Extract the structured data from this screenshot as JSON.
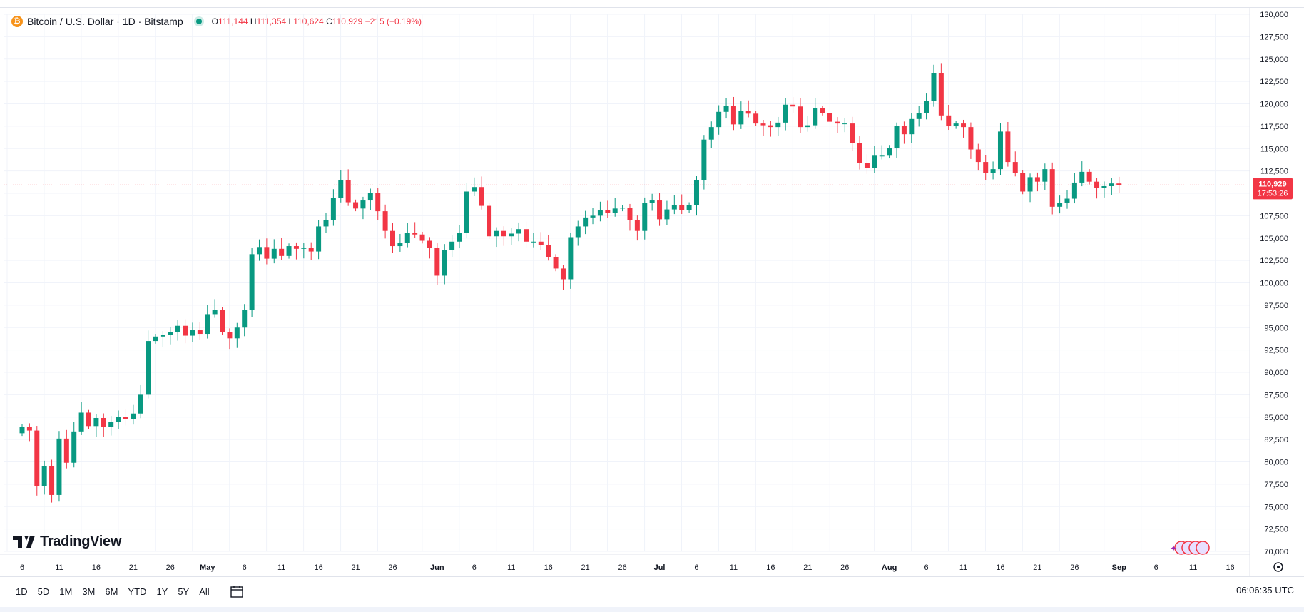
{
  "header": {
    "coin_symbol": "₿",
    "symbol_title": "Bitcoin / U.S. Dollar · 1D · Bitstamp",
    "ohlc": {
      "o_key": "O",
      "o": "111,144",
      "h_key": "H",
      "h": "111,354",
      "l_key": "L",
      "l": "110,624",
      "c_key": "C",
      "c": "110,929",
      "change": "−215 (−0.19%)"
    }
  },
  "branding": {
    "logo_mark": "TV",
    "logo_text": "TradingView"
  },
  "price_label": {
    "price": "110,929",
    "countdown": "17:53:26"
  },
  "bottom": {
    "ranges": [
      "1D",
      "5D",
      "1M",
      "3M",
      "6M",
      "YTD",
      "1Y",
      "5Y",
      "All"
    ],
    "clock": "06:06:35 UTC"
  },
  "colors": {
    "up": "#089981",
    "down": "#f23645",
    "grid": "#f0f3fa",
    "text": "#131722",
    "accent_btc": "#f7931a"
  },
  "chart_data": {
    "type": "candlestick",
    "title": "Bitcoin / U.S. Dollar · 1D · Bitstamp",
    "ylim": [
      70000,
      130000
    ],
    "y_ticks": [
      "70,000",
      "72,500",
      "75,000",
      "77,500",
      "80,000",
      "82,500",
      "85,000",
      "87,500",
      "90,000",
      "92,500",
      "95,000",
      "97,500",
      "100,000",
      "102,500",
      "105,000",
      "107,500",
      "110,000",
      "112,500",
      "115,000",
      "117,500",
      "120,000",
      "122,500",
      "125,000",
      "127,500",
      "130,000"
    ],
    "x_ticks": [
      {
        "label": "6",
        "day": 0
      },
      {
        "label": "11",
        "day": 5
      },
      {
        "label": "16",
        "day": 10
      },
      {
        "label": "21",
        "day": 15
      },
      {
        "label": "26",
        "day": 20
      },
      {
        "label": "May",
        "day": 25
      },
      {
        "label": "6",
        "day": 30
      },
      {
        "label": "11",
        "day": 35
      },
      {
        "label": "16",
        "day": 40
      },
      {
        "label": "21",
        "day": 45
      },
      {
        "label": "26",
        "day": 50
      },
      {
        "label": "Jun",
        "day": 56
      },
      {
        "label": "6",
        "day": 61
      },
      {
        "label": "11",
        "day": 66
      },
      {
        "label": "16",
        "day": 71
      },
      {
        "label": "21",
        "day": 76
      },
      {
        "label": "26",
        "day": 81
      },
      {
        "label": "Jul",
        "day": 86
      },
      {
        "label": "6",
        "day": 91
      },
      {
        "label": "11",
        "day": 96
      },
      {
        "label": "16",
        "day": 101
      },
      {
        "label": "21",
        "day": 106
      },
      {
        "label": "26",
        "day": 111
      },
      {
        "label": "Aug",
        "day": 117
      },
      {
        "label": "6",
        "day": 122
      },
      {
        "label": "11",
        "day": 127
      },
      {
        "label": "16",
        "day": 132
      },
      {
        "label": "21",
        "day": 137
      },
      {
        "label": "26",
        "day": 142
      },
      {
        "label": "Sep",
        "day": 148
      },
      {
        "label": "6",
        "day": 153
      },
      {
        "label": "11",
        "day": 158
      },
      {
        "label": "16",
        "day": 163
      }
    ],
    "last_price": 110929,
    "series_close": [
      83900,
      83500,
      77300,
      79500,
      76300,
      82600,
      79900,
      83400,
      85500,
      84000,
      84900,
      83900,
      84500,
      85000,
      84800,
      85400,
      87500,
      93500,
      94000,
      94200,
      94500,
      95200,
      94100,
      94700,
      94300,
      96500,
      97000,
      94500,
      93800,
      95000,
      97000,
      103200,
      104000,
      102700,
      103800,
      103000,
      104100,
      103800,
      103900,
      103500,
      106300,
      107000,
      109500,
      111500,
      109000,
      108300,
      109200,
      110000,
      108000,
      105800,
      104100,
      104500,
      105600,
      105400,
      104700,
      103900,
      100800,
      103700,
      104600,
      105600,
      110200,
      110700,
      108600,
      105200,
      105800,
      105200,
      105500,
      106000,
      104600,
      104600,
      104200,
      102900,
      101600,
      100400,
      105100,
      106300,
      107300,
      107500,
      108100,
      107800,
      108300,
      108400,
      107000,
      105800,
      108900,
      109200,
      107100,
      108200,
      108700,
      108100,
      108700,
      111500,
      116000,
      117400,
      119100,
      119800,
      117700,
      119200,
      118900,
      117800,
      117600,
      117400,
      117900,
      119900,
      119700,
      117400,
      117600,
      119500,
      119000,
      118000,
      117800,
      117800,
      115600,
      113400,
      112800,
      114200,
      114200,
      115100,
      117500,
      116600,
      118300,
      119000,
      120300,
      123400,
      118700,
      117500,
      117800,
      117400,
      114900,
      113500,
      112300,
      112700,
      116900,
      113500,
      112300,
      110200,
      111800,
      111300,
      112700,
      108500,
      108900,
      109400,
      111200,
      112400,
      111300,
      110600,
      110800,
      111100,
      110929
    ]
  }
}
